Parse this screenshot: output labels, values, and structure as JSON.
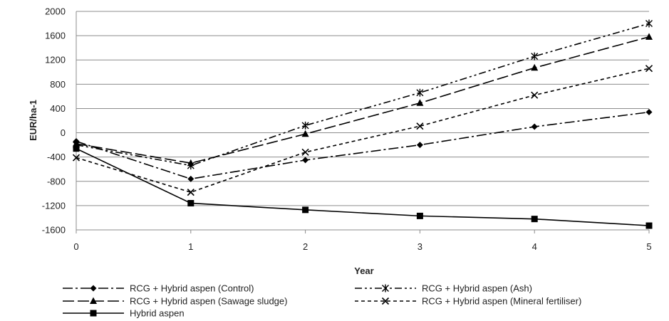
{
  "chart_data": {
    "type": "line",
    "title": "",
    "xlabel": "Year",
    "ylabel": "EUR/ha-1",
    "x": [
      0,
      1,
      2,
      3,
      4,
      5
    ],
    "xlim": [
      0,
      5
    ],
    "ylim": [
      -1600,
      2000
    ],
    "yticks": [
      -1600,
      -1200,
      -800,
      -400,
      0,
      400,
      800,
      1200,
      1600,
      2000
    ],
    "grid": "horizontal",
    "legend_position": "bottom",
    "series": [
      {
        "name": "RCG + Hybrid aspen (Control)",
        "marker": "diamond",
        "dash": "dash-dot",
        "values": [
          -140,
          -760,
          -450,
          -200,
          100,
          340
        ]
      },
      {
        "name": "RCG + Hybrid aspen (Ash)",
        "marker": "star",
        "dash": "dash-dot-dot",
        "values": [
          -200,
          -540,
          120,
          660,
          1260,
          1800
        ]
      },
      {
        "name": "RCG + Hybrid aspen (Sawage sludge)",
        "marker": "triangle",
        "dash": "long-dash",
        "values": [
          -180,
          -500,
          -20,
          490,
          1070,
          1580
        ]
      },
      {
        "name": "RCG + Hybrid aspen (Mineral fertiliser)",
        "marker": "x",
        "dash": "short-dash",
        "values": [
          -410,
          -980,
          -320,
          110,
          620,
          1060
        ]
      },
      {
        "name": "Hybrid aspen",
        "marker": "square",
        "dash": "solid",
        "values": [
          -260,
          -1160,
          -1270,
          -1370,
          -1420,
          -1530
        ]
      }
    ],
    "colors": {
      "line": "#000000",
      "grid": "#8c8c8c",
      "axis": "#8c8c8c"
    }
  }
}
